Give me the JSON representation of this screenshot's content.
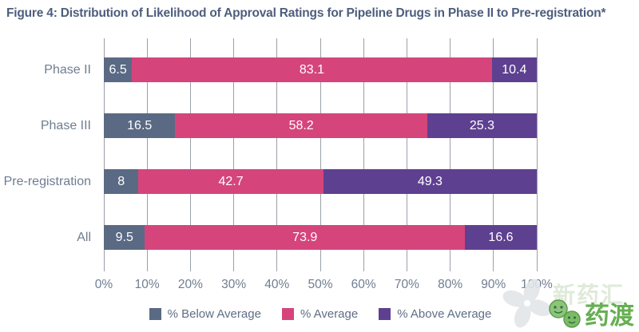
{
  "chart_data": {
    "type": "bar",
    "orientation": "horizontal",
    "stacked": true,
    "title": "Figure 4: Distribution of Likelihood of Approval Ratings for Pipeline Drugs in Phase II to Pre-registration*",
    "categories": [
      "Phase II",
      "Phase III",
      "Pre-registration",
      "All"
    ],
    "series": [
      {
        "name": "% Below Average",
        "color": "#5a6a84",
        "values": [
          6.5,
          16.5,
          8,
          9.5
        ]
      },
      {
        "name": "% Average",
        "color": "#d5457c",
        "values": [
          83.1,
          58.2,
          42.7,
          73.9
        ]
      },
      {
        "name": "% Above Average",
        "color": "#5e4090",
        "values": [
          10.4,
          25.3,
          49.3,
          16.6
        ]
      }
    ],
    "x_ticks": [
      "0%",
      "10%",
      "20%",
      "30%",
      "40%",
      "50%",
      "60%",
      "70%",
      "80%",
      "90%",
      "100%"
    ],
    "xlim": [
      0,
      100
    ],
    "grid": "vertical",
    "legend_position": "bottom",
    "bar_label_color": "#ffffff"
  },
  "watermark": {
    "faint_text": "新药汇",
    "brand_cn": "药渡",
    "brand_color": "#66af52",
    "clover_color": "#e2e6e9"
  },
  "style_tokens": {
    "title_color": "#4d5e7d",
    "axis_text_color": "#6f7d91",
    "gridline_color": "#9aa0a8",
    "legend_text_color": "#5f6e85"
  }
}
